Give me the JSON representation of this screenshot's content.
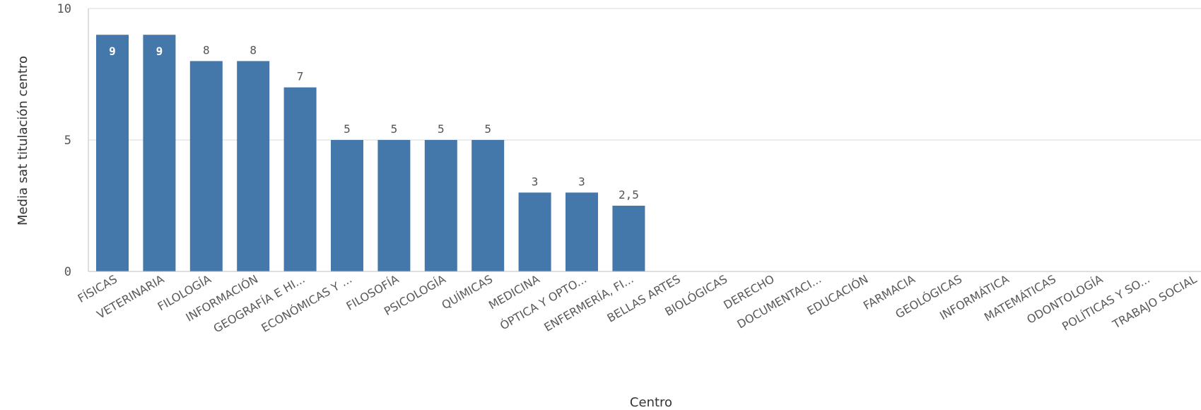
{
  "chart_data": {
    "type": "bar",
    "title": "",
    "xlabel": "Centro",
    "ylabel": "Media sat titulación centro",
    "ylim": [
      0,
      10
    ],
    "yticks": [
      "0",
      "5",
      "10"
    ],
    "bar_color": "#4477aa",
    "grid": true,
    "categories": [
      "FÍSICAS",
      "VETERINARIA",
      "FILOLOGÍA",
      "INFORMACIÓN",
      "GEOGRAFÍA E HI...",
      "ECONÓMICAS Y ...",
      "FILOSOFÍA",
      "PSICOLOGÍA",
      "QUÍMICAS",
      "MEDICINA",
      "ÓPTICA Y OPTO...",
      "ENFERMERÍA, FI...",
      "BELLAS ARTES",
      "BIOLÓGICAS",
      "DERECHO",
      "DOCUMENTACI...",
      "EDUCACIÓN",
      "FARMACIA",
      "GEOLÓGICAS",
      "INFORMÁTICA",
      "MATEMÁTICAS",
      "ODONTOLOGÍA",
      "POLÍTICAS Y SO...",
      "TRABAJO SOCIAL"
    ],
    "values": [
      9,
      9,
      8,
      8,
      7,
      5,
      5,
      5,
      5,
      3,
      3,
      2.5,
      null,
      null,
      null,
      null,
      null,
      null,
      null,
      null,
      null,
      null,
      null,
      null
    ],
    "data_labels": [
      "9",
      "9",
      "8",
      "8",
      "7",
      "5",
      "5",
      "5",
      "5",
      "3",
      "3",
      "2,5",
      "",
      "",
      "",
      "",
      "",
      "",
      "",
      "",
      "",
      "",
      "",
      ""
    ]
  }
}
